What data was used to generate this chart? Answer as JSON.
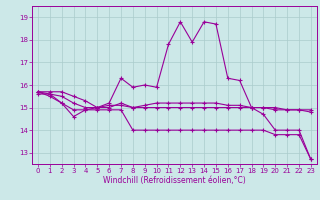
{
  "xlabel": "Windchill (Refroidissement éolien,°C)",
  "ylabel": "",
  "background_color": "#cce8e8",
  "grid_color": "#aacccc",
  "line_color": "#990099",
  "xlim": [
    -0.5,
    23.5
  ],
  "ylim": [
    12.5,
    19.5
  ],
  "yticks": [
    13,
    14,
    15,
    16,
    17,
    18,
    19
  ],
  "xticks": [
    0,
    1,
    2,
    3,
    4,
    5,
    6,
    7,
    8,
    9,
    10,
    11,
    12,
    13,
    14,
    15,
    16,
    17,
    18,
    19,
    20,
    21,
    22,
    23
  ],
  "line1_x": [
    0,
    1,
    2,
    3,
    4,
    5,
    6,
    7,
    8,
    9,
    10,
    11,
    12,
    13,
    14,
    15,
    16,
    17,
    18,
    19,
    20,
    21,
    22,
    23
  ],
  "line1_y": [
    15.7,
    15.7,
    15.7,
    15.5,
    15.3,
    15.0,
    15.2,
    16.3,
    15.9,
    16.0,
    15.9,
    17.8,
    18.8,
    17.9,
    18.8,
    18.7,
    16.3,
    16.2,
    15.0,
    14.7,
    14.0,
    14.0,
    14.0,
    12.7
  ],
  "line2_x": [
    0,
    1,
    2,
    3,
    4,
    5,
    6,
    7,
    8,
    9,
    10,
    11,
    12,
    13,
    14,
    15,
    16,
    17,
    18,
    19,
    20,
    21,
    22,
    23
  ],
  "line2_y": [
    15.7,
    15.6,
    15.2,
    14.9,
    14.9,
    15.0,
    15.1,
    15.1,
    15.0,
    15.0,
    15.0,
    15.0,
    15.0,
    15.0,
    15.0,
    15.0,
    15.0,
    15.0,
    15.0,
    15.0,
    14.9,
    14.9,
    14.9,
    14.9
  ],
  "line3_x": [
    0,
    1,
    2,
    3,
    4,
    5,
    6,
    7,
    8,
    9,
    10,
    11,
    12,
    13,
    14,
    15,
    16,
    17,
    18,
    19,
    20,
    21,
    22,
    23
  ],
  "line3_y": [
    15.7,
    15.5,
    15.2,
    14.6,
    14.9,
    14.9,
    14.9,
    14.9,
    14.0,
    14.0,
    14.0,
    14.0,
    14.0,
    14.0,
    14.0,
    14.0,
    14.0,
    14.0,
    14.0,
    14.0,
    13.8,
    13.8,
    13.8,
    12.7
  ],
  "line4_x": [
    0,
    1,
    2,
    3,
    4,
    5,
    6,
    7,
    8,
    9,
    10,
    11,
    12,
    13,
    14,
    15,
    16,
    17,
    18,
    19,
    20,
    21,
    22,
    23
  ],
  "line4_y": [
    15.6,
    15.6,
    15.5,
    15.2,
    15.0,
    15.0,
    15.0,
    15.2,
    15.0,
    15.1,
    15.2,
    15.2,
    15.2,
    15.2,
    15.2,
    15.2,
    15.1,
    15.1,
    15.0,
    15.0,
    15.0,
    14.9,
    14.9,
    14.8
  ],
  "tick_fontsize": 5.0,
  "xlabel_fontsize": 5.5,
  "marker_size": 3.0,
  "linewidth": 0.8
}
